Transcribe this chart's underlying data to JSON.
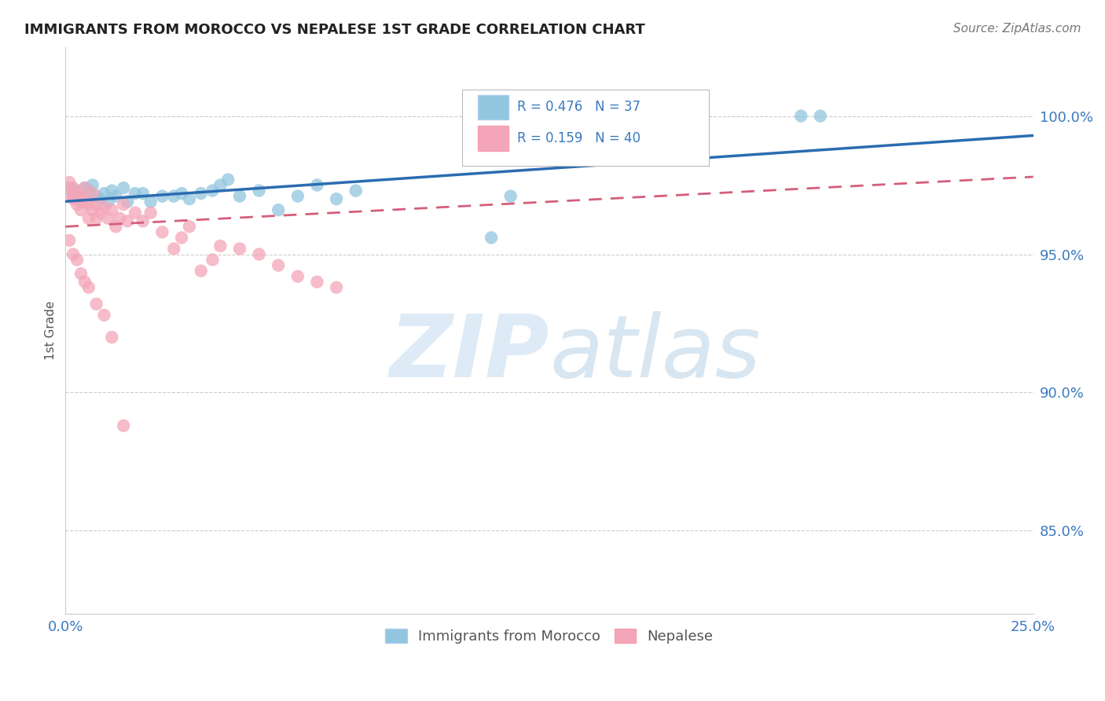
{
  "title": "IMMIGRANTS FROM MOROCCO VS NEPALESE 1ST GRADE CORRELATION CHART",
  "source": "Source: ZipAtlas.com",
  "ylabel": "1st Grade",
  "ytick_labels": [
    "100.0%",
    "95.0%",
    "90.0%",
    "85.0%"
  ],
  "ytick_vals": [
    1.0,
    0.95,
    0.9,
    0.85
  ],
  "xlim": [
    0.0,
    0.25
  ],
  "ylim": [
    0.82,
    1.025
  ],
  "r_morocco": 0.476,
  "n_morocco": 37,
  "r_nepalese": 0.159,
  "n_nepalese": 40,
  "blue_color": "#92c5de",
  "pink_color": "#f4a6b8",
  "blue_line_color": "#2b6cb0",
  "pink_line_color": "#d45f7a",
  "legend_blue": "Immigrants from Morocco",
  "legend_pink": "Nepalese",
  "background_color": "#ffffff",
  "morocco_x": [
    0.001,
    0.002,
    0.003,
    0.004,
    0.005,
    0.006,
    0.007,
    0.008,
    0.009,
    0.01,
    0.011,
    0.012,
    0.013,
    0.015,
    0.016,
    0.018,
    0.02,
    0.022,
    0.025,
    0.028,
    0.03,
    0.032,
    0.035,
    0.038,
    0.04,
    0.042,
    0.045,
    0.05,
    0.055,
    0.06,
    0.065,
    0.07,
    0.075,
    0.11,
    0.115,
    0.19,
    0.195
  ],
  "morocco_y": [
    0.974,
    0.971,
    0.973,
    0.969,
    0.974,
    0.973,
    0.975,
    0.971,
    0.97,
    0.972,
    0.969,
    0.973,
    0.971,
    0.974,
    0.969,
    0.972,
    0.972,
    0.969,
    0.971,
    0.971,
    0.972,
    0.97,
    0.972,
    0.973,
    0.975,
    0.977,
    0.971,
    0.973,
    0.966,
    0.971,
    0.975,
    0.97,
    0.973,
    0.956,
    0.971,
    1.0,
    1.0
  ],
  "nepalese_x": [
    0.001,
    0.001,
    0.002,
    0.002,
    0.003,
    0.003,
    0.004,
    0.004,
    0.005,
    0.005,
    0.006,
    0.006,
    0.007,
    0.007,
    0.008,
    0.008,
    0.009,
    0.01,
    0.011,
    0.012,
    0.013,
    0.014,
    0.015,
    0.016,
    0.018,
    0.02,
    0.022,
    0.025,
    0.028,
    0.03,
    0.032,
    0.035,
    0.038,
    0.04,
    0.045,
    0.05,
    0.055,
    0.06,
    0.065,
    0.07
  ],
  "nepalese_y": [
    0.976,
    0.972,
    0.974,
    0.97,
    0.972,
    0.968,
    0.971,
    0.966,
    0.974,
    0.969,
    0.968,
    0.963,
    0.972,
    0.966,
    0.968,
    0.963,
    0.965,
    0.967,
    0.963,
    0.966,
    0.96,
    0.963,
    0.968,
    0.962,
    0.965,
    0.962,
    0.965,
    0.958,
    0.952,
    0.956,
    0.96,
    0.944,
    0.948,
    0.953,
    0.952,
    0.95,
    0.946,
    0.942,
    0.94,
    0.938
  ],
  "nepalese_low_x": [
    0.001,
    0.002,
    0.003,
    0.004,
    0.005,
    0.006,
    0.008,
    0.01,
    0.012,
    0.015
  ],
  "nepalese_low_y": [
    0.955,
    0.95,
    0.948,
    0.943,
    0.94,
    0.938,
    0.932,
    0.928,
    0.92,
    0.888
  ]
}
